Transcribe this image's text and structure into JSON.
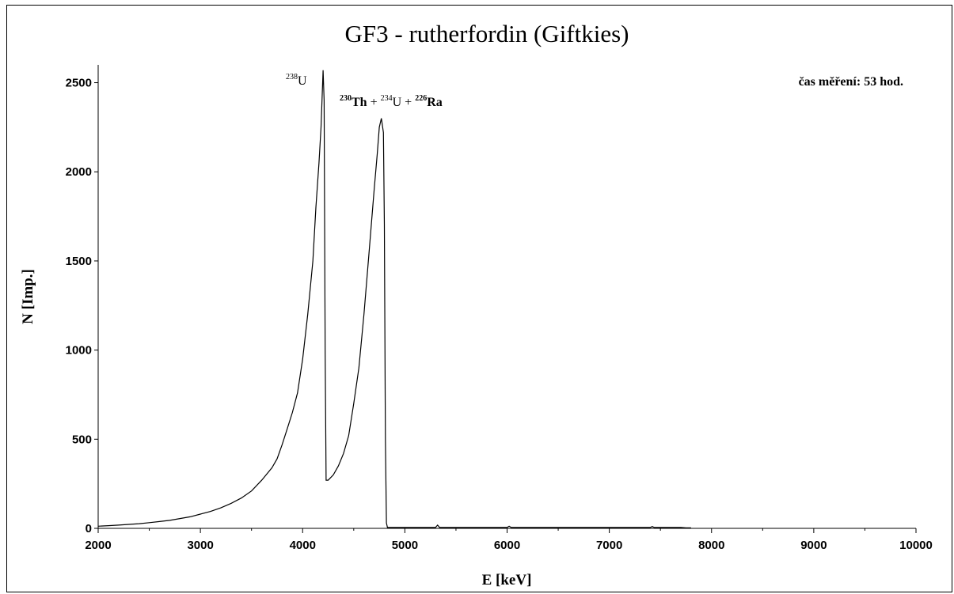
{
  "chart_data": {
    "type": "line",
    "title": "GF3 - rutherfordin (Giftkies)",
    "xlabel": "E [keV]",
    "ylabel": "N [Imp.]",
    "xlim": [
      2000,
      10000
    ],
    "ylim": [
      0,
      2600
    ],
    "xticks": [
      2000,
      3000,
      4000,
      5000,
      6000,
      7000,
      8000,
      9000,
      10000
    ],
    "yticks": [
      0,
      500,
      1000,
      1500,
      2000,
      2500
    ],
    "grid": false,
    "annotations": {
      "time": "čas měření: 53 hod.",
      "peak1": {
        "sup": "238",
        "text": "U"
      },
      "peak2": [
        {
          "sup": "230",
          "text": "Th"
        },
        {
          "sep": " + "
        },
        {
          "sup": "234",
          "text": "U"
        },
        {
          "sep": " + "
        },
        {
          "sup": "226",
          "text": "Ra"
        }
      ]
    },
    "series": [
      {
        "x": [
          2000,
          2100,
          2200,
          2300,
          2400,
          2500,
          2600,
          2700,
          2800,
          2900,
          3000,
          3100,
          3200,
          3300,
          3400,
          3500,
          3600,
          3700,
          3750,
          3800,
          3850,
          3900,
          3950,
          4000,
          4050,
          4100,
          4130,
          4160,
          4180,
          4200,
          4210,
          4220,
          4230,
          4250,
          4300,
          4350,
          4400,
          4450,
          4500,
          4550,
          4600,
          4650,
          4700,
          4730,
          4750,
          4770,
          4790,
          4800,
          4810,
          4820,
          4830,
          4850,
          4900,
          5000,
          5300,
          5320,
          5340,
          5400,
          6000,
          6020,
          6040,
          6100,
          6800,
          7400,
          7420,
          7440,
          7500,
          7700,
          7750,
          7800
        ],
        "y": [
          12,
          15,
          18,
          22,
          26,
          32,
          38,
          45,
          55,
          65,
          80,
          95,
          115,
          140,
          170,
          210,
          270,
          340,
          390,
          470,
          560,
          650,
          760,
          950,
          1200,
          1500,
          1800,
          2050,
          2250,
          2570,
          2400,
          1000,
          270,
          270,
          300,
          350,
          420,
          520,
          700,
          900,
          1200,
          1550,
          1900,
          2100,
          2250,
          2300,
          2220,
          1700,
          500,
          30,
          5,
          5,
          5,
          5,
          5,
          18,
          5,
          5,
          5,
          12,
          5,
          5,
          5,
          5,
          10,
          5,
          5,
          5,
          3,
          3
        ]
      }
    ]
  }
}
